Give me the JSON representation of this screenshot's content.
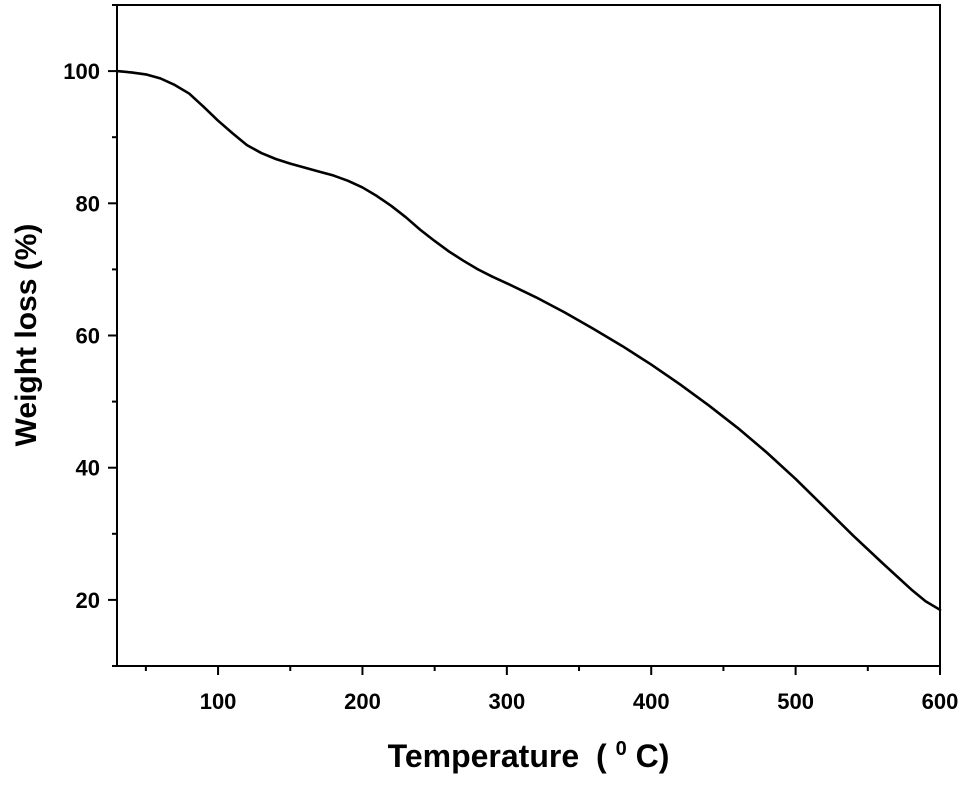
{
  "chart_data": {
    "type": "line",
    "title": "",
    "xlabel": "Temperature",
    "xlabel_unit_open": "(",
    "xlabel_unit_sup": "0",
    "xlabel_unit_close": "C)",
    "ylabel": "Weight loss (%)",
    "xlim": [
      30,
      600
    ],
    "ylim": [
      10,
      110
    ],
    "xticks": [
      100,
      200,
      300,
      400,
      500,
      600
    ],
    "xtick_labels": [
      "100",
      "200",
      "300",
      "400",
      "500",
      "600"
    ],
    "yticks": [
      20,
      40,
      60,
      80,
      100
    ],
    "ytick_labels": [
      "20",
      "40",
      "60",
      "80",
      "100"
    ],
    "grid": false,
    "legend": "none",
    "line_color": "#000000",
    "series": [
      {
        "x": [
          30,
          40,
          50,
          60,
          70,
          80,
          90,
          100,
          110,
          120,
          130,
          140,
          150,
          160,
          170,
          180,
          190,
          200,
          210,
          220,
          230,
          240,
          250,
          260,
          270,
          280,
          290,
          300,
          320,
          340,
          360,
          380,
          400,
          420,
          440,
          460,
          480,
          500,
          520,
          540,
          560,
          580,
          590,
          600
        ],
        "y": [
          100,
          99.8,
          99.5,
          98.9,
          97.9,
          96.6,
          94.6,
          92.5,
          90.6,
          88.8,
          87.6,
          86.7,
          86.0,
          85.4,
          84.8,
          84.2,
          83.4,
          82.4,
          81.1,
          79.6,
          77.9,
          76.0,
          74.3,
          72.7,
          71.3,
          70.0,
          68.9,
          67.9,
          65.8,
          63.5,
          61.0,
          58.4,
          55.6,
          52.6,
          49.4,
          46.0,
          42.3,
          38.3,
          34.0,
          29.7,
          25.6,
          21.6,
          19.8,
          18.5
        ]
      }
    ]
  }
}
